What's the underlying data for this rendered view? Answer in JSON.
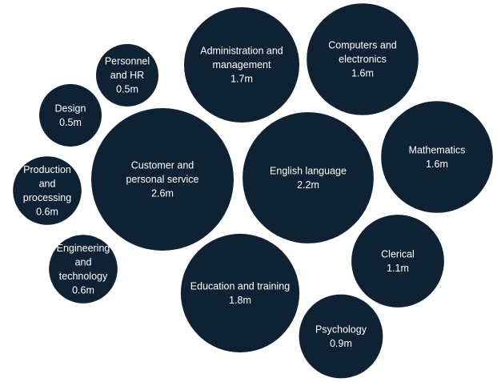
{
  "colors": {
    "bubble_fill": "#0e2233",
    "label_text": "#ffffff",
    "background": "#ffffff"
  },
  "chart_data": {
    "type": "bubble",
    "title": "",
    "unit": "m",
    "series": [
      {
        "lines": [
          "Customer and",
          "personal service"
        ],
        "value": 2.6,
        "value_label": "2.6m"
      },
      {
        "lines": [
          "English language"
        ],
        "value": 2.2,
        "value_label": "2.2m"
      },
      {
        "lines": [
          "Education and training"
        ],
        "value": 1.8,
        "value_label": "1.8m"
      },
      {
        "lines": [
          "Administration and",
          "management"
        ],
        "value": 1.7,
        "value_label": "1.7m"
      },
      {
        "lines": [
          "Computers and",
          "electronics"
        ],
        "value": 1.6,
        "value_label": "1.6m"
      },
      {
        "lines": [
          "Mathematics"
        ],
        "value": 1.6,
        "value_label": "1.6m"
      },
      {
        "lines": [
          "Clerical"
        ],
        "value": 1.1,
        "value_label": "1.1m"
      },
      {
        "lines": [
          "Psychology"
        ],
        "value": 0.9,
        "value_label": "0.9m"
      },
      {
        "lines": [
          "Production",
          "and",
          "processing"
        ],
        "value": 0.6,
        "value_label": "0.6m"
      },
      {
        "lines": [
          "Engineering",
          "and",
          "technology"
        ],
        "value": 0.6,
        "value_label": "0.6m"
      },
      {
        "lines": [
          "Personnel",
          "and HR"
        ],
        "value": 0.5,
        "value_label": "0.5m"
      },
      {
        "lines": [
          "Design"
        ],
        "value": 0.5,
        "value_label": "0.5m"
      }
    ]
  }
}
